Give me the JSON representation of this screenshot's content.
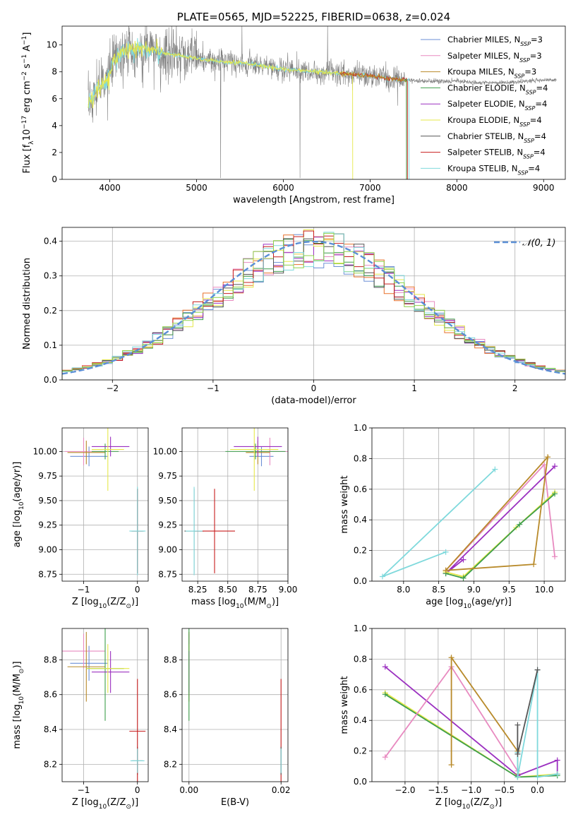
{
  "colors": {
    "Chabrier MILES": "#6b8fd6",
    "Salpeter MILES": "#e88ac0",
    "Kroupa MILES": "#b88a2a",
    "Chabrier ELODIE": "#3e9e4c",
    "Salpeter ELODIE": "#9b30c0",
    "Kroupa ELODIE": "#e6e84a",
    "Chabrier STELIB": "#555555",
    "Salpeter STELIB": "#c81e1e",
    "Kroupa STELIB": "#7fd9dc",
    "data": "#808080",
    "normal": "#5b8fd6",
    "orange": "#e8702a",
    "lime": "#8fd14a"
  },
  "chart_data": [
    {
      "id": "spectrum",
      "type": "line",
      "title": "PLATE=0565, MJD=52225, FIBERID=0638, z=0.024",
      "xlabel": "wavelength [Angstrom, rest frame]",
      "ylabel": "Flux [fλ10⁻¹⁷ erg cm⁻² s⁻¹ A⁻¹]",
      "xlim": [
        3450,
        9250
      ],
      "ylim": [
        0,
        11.4
      ],
      "xticks": [
        4000,
        5000,
        6000,
        7000,
        8000,
        9000
      ],
      "yticks": [
        0,
        2,
        4,
        6,
        8,
        10
      ],
      "grid": false,
      "legend_position": "top-right",
      "legend": [
        {
          "series": "Chabrier MILES",
          "label": "Chabrier MILES, N",
          "sub": "SSP",
          "suffix": "=3"
        },
        {
          "series": "Salpeter MILES",
          "label": "Salpeter MILES, N",
          "sub": "SSP",
          "suffix": "=3"
        },
        {
          "series": "Kroupa MILES",
          "label": "Kroupa MILES, N",
          "sub": "SSP",
          "suffix": "=3"
        },
        {
          "series": "Chabrier ELODIE",
          "label": "Chabrier ELODIE, N",
          "sub": "SSP",
          "suffix": "=4"
        },
        {
          "series": "Salpeter ELODIE",
          "label": "Salpeter ELODIE, N",
          "sub": "SSP",
          "suffix": "=4"
        },
        {
          "series": "Kroupa ELODIE",
          "label": "Kroupa ELODIE, N",
          "sub": "SSP",
          "suffix": "=4"
        },
        {
          "series": "Chabrier STELIB",
          "label": "Chabrier STELIB, N",
          "sub": "SSP",
          "suffix": "=4"
        },
        {
          "series": "Salpeter STELIB",
          "label": "Salpeter STELIB, N",
          "sub": "SSP",
          "suffix": "=4"
        },
        {
          "series": "Kroupa STELIB",
          "label": "Kroupa STELIB, N",
          "sub": "SSP",
          "suffix": "=4"
        }
      ],
      "continuum": [
        [
          3750,
          5.6
        ],
        [
          3850,
          6.6
        ],
        [
          3950,
          7.2
        ],
        [
          4050,
          8.9
        ],
        [
          4100,
          9.3
        ],
        [
          4200,
          9.5
        ],
        [
          4400,
          9.8
        ],
        [
          4600,
          9.4
        ],
        [
          4800,
          9.2
        ],
        [
          5000,
          9.0
        ],
        [
          5200,
          8.8
        ],
        [
          5400,
          8.7
        ],
        [
          5600,
          8.6
        ],
        [
          5800,
          8.4
        ],
        [
          6000,
          8.2
        ],
        [
          6200,
          8.1
        ],
        [
          6400,
          8.0
        ],
        [
          6600,
          7.9
        ],
        [
          6800,
          7.8
        ],
        [
          7000,
          7.7
        ],
        [
          7200,
          7.5
        ],
        [
          7400,
          7.4
        ],
        [
          7600,
          7.3
        ],
        [
          7800,
          7.3
        ],
        [
          8000,
          7.3
        ],
        [
          8200,
          7.2
        ],
        [
          8400,
          7.2
        ],
        [
          8600,
          7.2
        ],
        [
          8800,
          7.3
        ],
        [
          9000,
          7.4
        ],
        [
          9150,
          7.4
        ]
      ],
      "model_segments": [
        {
          "series": "Kroupa STELIB",
          "x": [
            3750,
            7450
          ]
        },
        {
          "series": "Kroupa ELODIE",
          "x": [
            3750,
            6800
          ]
        },
        {
          "series": "Salpeter STELIB",
          "x": [
            6650,
            7430
          ]
        },
        {
          "series": "Kroupa MILES",
          "x": [
            6650,
            7420
          ]
        },
        {
          "series": "Chabrier ELODIE",
          "x": [
            7400,
            7420
          ]
        }
      ]
    },
    {
      "id": "residuals",
      "type": "histogram",
      "xlabel": "(data-model)/error",
      "ylabel": "Normed distribution",
      "xlim": [
        -2.5,
        2.5
      ],
      "ylim": [
        0,
        0.44
      ],
      "xticks": [
        -2,
        -1,
        0,
        1,
        2
      ],
      "yticks": [
        0.0,
        0.1,
        0.2,
        0.3,
        0.4
      ],
      "grid": true,
      "legend_position": "top-right",
      "normal_label": "𝒩(0, 1)",
      "bin_width": 0.1
    },
    {
      "id": "age_vs_Z",
      "type": "errorbar",
      "xlabel": "Z [log10(Z/Z⊙)]",
      "ylabel": "age  [log10(age/yr)]",
      "xlim": [
        -1.4,
        0.2
      ],
      "ylim": [
        8.68,
        10.24
      ],
      "xticks": [
        -1,
        0
      ],
      "yticks": [
        8.75,
        9.0,
        9.25,
        9.5,
        9.75,
        10.0
      ],
      "grid": true,
      "points": [
        {
          "series": "Chabrier MILES",
          "x": -0.9,
          "y": 9.95,
          "xerr": 0.35,
          "yerr": 0.1
        },
        {
          "series": "Salpeter MILES",
          "x": -1.0,
          "y": 10.0,
          "xerr": 0.35,
          "yerr": 0.14
        },
        {
          "series": "Kroupa MILES",
          "x": -0.95,
          "y": 9.99,
          "xerr": 0.35,
          "yerr": 0.12
        },
        {
          "series": "Chabrier ELODIE",
          "x": -0.6,
          "y": 10.0,
          "xerr": 0.25,
          "yerr": 0.08
        },
        {
          "series": "Salpeter ELODIE",
          "x": -0.5,
          "y": 10.05,
          "xerr": 0.35,
          "yerr": 0.1
        },
        {
          "series": "Kroupa ELODIE",
          "x": -0.55,
          "y": 10.02,
          "xerr": 0.3,
          "yerr": 0.42
        },
        {
          "series": "Chabrier STELIB",
          "x": 0.0,
          "y": 9.19,
          "xerr": 0.12,
          "yerr": 0.43
        },
        {
          "series": "Salpeter STELIB",
          "x": 0.0,
          "y": 9.19,
          "xerr": 0.1,
          "yerr": 0.43
        },
        {
          "series": "Kroupa STELIB",
          "x": 0.0,
          "y": 9.19,
          "xerr": 0.15,
          "yerr": 0.45
        }
      ]
    },
    {
      "id": "age_vs_mass",
      "type": "errorbar",
      "xlabel": "mass [log10(M/M⊙)]",
      "ylabel": "",
      "xlim": [
        8.12,
        9.0
      ],
      "ylim": [
        8.68,
        10.24
      ],
      "xticks": [
        8.25,
        8.5,
        8.75,
        9.0
      ],
      "yticks": [
        8.75,
        9.0,
        9.25,
        9.5,
        9.75,
        10.0
      ],
      "grid": true,
      "points": [
        {
          "series": "Chabrier MILES",
          "x": 8.78,
          "y": 9.95,
          "xerr": 0.1,
          "yerr": 0.1
        },
        {
          "series": "Salpeter MILES",
          "x": 8.85,
          "y": 10.0,
          "xerr": 0.15,
          "yerr": 0.14
        },
        {
          "series": "Kroupa MILES",
          "x": 8.75,
          "y": 9.99,
          "xerr": 0.1,
          "yerr": 0.12
        },
        {
          "series": "Chabrier ELODIE",
          "x": 8.73,
          "y": 10.0,
          "xerr": 0.25,
          "yerr": 0.08
        },
        {
          "series": "Salpeter ELODIE",
          "x": 8.75,
          "y": 10.05,
          "xerr": 0.2,
          "yerr": 0.1
        },
        {
          "series": "Kroupa ELODIE",
          "x": 8.72,
          "y": 10.02,
          "xerr": 0.2,
          "yerr": 0.42
        },
        {
          "series": "Chabrier STELIB",
          "x": 8.22,
          "y": 9.19,
          "xerr": 0.08,
          "yerr": 0.43
        },
        {
          "series": "Salpeter STELIB",
          "x": 8.39,
          "y": 9.19,
          "xerr": 0.17,
          "yerr": 0.43
        },
        {
          "series": "Kroupa STELIB",
          "x": 8.22,
          "y": 9.19,
          "xerr": 0.07,
          "yerr": 0.45
        }
      ]
    },
    {
      "id": "weight_vs_age",
      "type": "line",
      "xlabel": "age  [log10(age/yr)]",
      "ylabel": "mass weight",
      "xlim": [
        7.55,
        10.3
      ],
      "ylim": [
        0,
        1
      ],
      "xticks": [
        8.0,
        8.5,
        9.0,
        9.5,
        10.0
      ],
      "yticks": [
        0.0,
        0.2,
        0.4,
        0.6,
        0.8,
        1.0
      ],
      "grid": true,
      "series": [
        {
          "series": "Kroupa STELIB",
          "points": [
            [
              8.6,
              0.19
            ],
            [
              7.7,
              0.03
            ],
            [
              9.3,
              0.73
            ]
          ]
        },
        {
          "series": "Salpeter MILES",
          "points": [
            [
              8.6,
              0.07
            ],
            [
              10.0,
              0.76
            ],
            [
              10.15,
              0.16
            ]
          ]
        },
        {
          "series": "Salpeter ELODIE",
          "points": [
            [
              8.85,
              0.14
            ],
            [
              8.6,
              0.05
            ],
            [
              10.15,
              0.75
            ]
          ]
        },
        {
          "series": "Kroupa ELODIE",
          "points": [
            [
              8.6,
              0.06
            ],
            [
              8.85,
              0.03
            ],
            [
              9.6,
              0.35
            ],
            [
              10.15,
              0.58
            ]
          ]
        },
        {
          "series": "Chabrier ELODIE",
          "points": [
            [
              8.6,
              0.05
            ],
            [
              8.85,
              0.02
            ],
            [
              9.65,
              0.37
            ],
            [
              10.15,
              0.57
            ]
          ]
        },
        {
          "series": "Kroupa MILES",
          "points": [
            [
              8.6,
              0.07
            ],
            [
              9.85,
              0.11
            ],
            [
              10.05,
              0.81
            ],
            [
              8.6,
              0.07
            ]
          ]
        }
      ]
    },
    {
      "id": "mass_vs_Z",
      "type": "errorbar",
      "xlabel": "Z [log10(Z/Z⊙)]",
      "ylabel": "mass [log10(M/M⊙)]",
      "xlim": [
        -1.4,
        0.2
      ],
      "ylim": [
        8.1,
        8.98
      ],
      "xticks": [
        -1,
        0
      ],
      "yticks": [
        8.2,
        8.4,
        8.6,
        8.8
      ],
      "grid": true,
      "points": [
        {
          "series": "Chabrier MILES",
          "x": -0.9,
          "y": 8.78,
          "xerr": 0.35,
          "yerr": 0.1
        },
        {
          "series": "Salpeter MILES",
          "x": -1.0,
          "y": 8.85,
          "xerr": 0.4,
          "yerr": 0.1
        },
        {
          "series": "Kroupa MILES",
          "x": -0.95,
          "y": 8.76,
          "xerr": 0.35,
          "yerr": 0.2
        },
        {
          "series": "Chabrier ELODIE",
          "x": -0.6,
          "y": 8.75,
          "xerr": 0.35,
          "yerr": 0.3
        },
        {
          "series": "Salpeter ELODIE",
          "x": -0.5,
          "y": 8.73,
          "xerr": 0.35,
          "yerr": 0.12
        },
        {
          "series": "Kroupa ELODIE",
          "x": -0.55,
          "y": 8.75,
          "xerr": 0.4,
          "yerr": 0.14
        },
        {
          "series": "Chabrier STELIB",
          "x": 0.0,
          "y": 8.22,
          "xerr": 0.1,
          "yerr": 0.08
        },
        {
          "series": "Salpeter STELIB",
          "x": 0.0,
          "y": 8.39,
          "xerr": 0.15,
          "yerr": 0.3
        },
        {
          "series": "Kroupa STELIB",
          "x": 0.0,
          "y": 8.22,
          "xerr": 0.13,
          "yerr": 0.07
        }
      ]
    },
    {
      "id": "mass_vs_EBV",
      "type": "errorbar",
      "xlabel": "E(B-V)",
      "ylabel": "",
      "xlim": [
        -0.0015,
        0.0215
      ],
      "ylim": [
        8.1,
        8.98
      ],
      "xticks": [
        0.0,
        0.02
      ],
      "yticks": [
        8.2,
        8.4,
        8.6,
        8.8
      ],
      "grid": true,
      "points": [
        {
          "series": "Salpeter MILES",
          "x": 0.0,
          "y": 8.85,
          "xerr": 0,
          "yerr": 0.1
        },
        {
          "series": "Kroupa MILES",
          "x": 0.0,
          "y": 8.76,
          "xerr": 0,
          "yerr": 0.2
        },
        {
          "series": "Kroupa ELODIE",
          "x": 0.0,
          "y": 8.75,
          "xerr": 0,
          "yerr": 0.14
        },
        {
          "series": "Salpeter ELODIE",
          "x": 0.0,
          "y": 8.73,
          "xerr": 0,
          "yerr": 0.12
        },
        {
          "series": "Chabrier ELODIE",
          "x": 0.0,
          "y": 8.75,
          "xerr": 0,
          "yerr": 0.3
        },
        {
          "series": "Salpeter STELIB",
          "x": 0.02,
          "y": 8.39,
          "xerr": 0,
          "yerr": 0.3
        },
        {
          "series": "Chabrier STELIB",
          "x": 0.02,
          "y": 8.22,
          "xerr": 0,
          "yerr": 0.08
        },
        {
          "series": "Kroupa STELIB",
          "x": 0.02,
          "y": 8.22,
          "xerr": 0,
          "yerr": 0.07
        }
      ]
    },
    {
      "id": "weight_vs_Z",
      "type": "line",
      "xlabel": "Z [log10(Z/Z⊙)]",
      "ylabel": "mass weight",
      "xlim": [
        -2.5,
        0.42
      ],
      "ylim": [
        0,
        1
      ],
      "xticks": [
        -2.0,
        -1.5,
        -1.0,
        -0.5,
        0.0
      ],
      "yticks": [
        0.0,
        0.2,
        0.4,
        0.6,
        0.8,
        1.0
      ],
      "grid": true,
      "series": [
        {
          "series": "Salpeter ELODIE",
          "points": [
            [
              -2.3,
              0.75
            ],
            [
              -0.3,
              0.04
            ],
            [
              0.3,
              0.14
            ],
            [
              0.3,
              0.05
            ]
          ]
        },
        {
          "series": "Kroupa ELODIE",
          "points": [
            [
              -2.3,
              0.58
            ],
            [
              -0.3,
              0.03
            ],
            [
              0.3,
              0.05
            ]
          ]
        },
        {
          "series": "Chabrier ELODIE",
          "points": [
            [
              -2.3,
              0.57
            ],
            [
              -0.3,
              0.03
            ],
            [
              0.3,
              0.04
            ]
          ]
        },
        {
          "series": "Salpeter MILES",
          "points": [
            [
              -2.3,
              0.16
            ],
            [
              -1.3,
              0.75
            ],
            [
              -0.3,
              0.07
            ]
          ]
        },
        {
          "series": "Kroupa MILES",
          "points": [
            [
              -1.3,
              0.11
            ],
            [
              -1.3,
              0.81
            ],
            [
              -0.3,
              0.2
            ],
            [
              -0.3,
              0.05
            ]
          ]
        },
        {
          "series": "Kroupa STELIB",
          "points": [
            [
              -0.3,
              0.19
            ],
            [
              -0.3,
              0.03
            ],
            [
              0.0,
              0.73
            ],
            [
              0.0,
              0.03
            ],
            [
              0.3,
              0.05
            ]
          ]
        },
        {
          "series": "Chabrier STELIB",
          "points": [
            [
              -0.3,
              0.37
            ],
            [
              -0.3,
              0.18
            ],
            [
              0.0,
              0.73
            ]
          ]
        }
      ]
    }
  ]
}
